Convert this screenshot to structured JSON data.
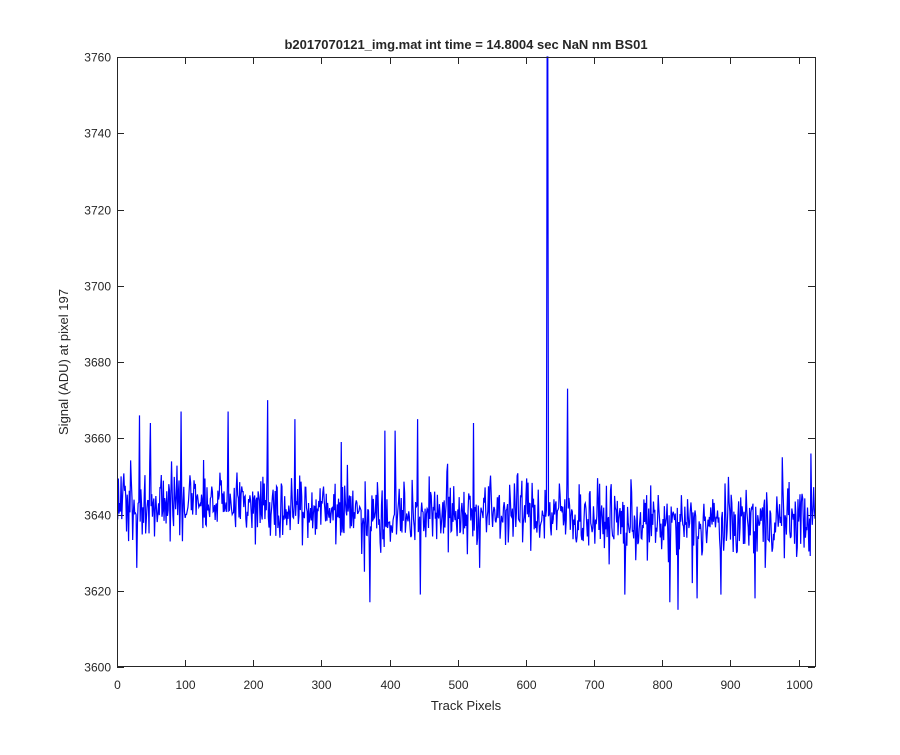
{
  "chart_data": {
    "type": "line",
    "title": "b2017070121_img.mat int time = 14.8004 sec  NaN nm BS01",
    "xlabel": "Track Pixels",
    "ylabel": "Signal (ADU) at pixel 197",
    "xlim": [
      0,
      1024
    ],
    "ylim": [
      3600,
      3760
    ],
    "xticks": [
      0,
      100,
      200,
      300,
      400,
      500,
      600,
      700,
      800,
      900,
      1000
    ],
    "yticks": [
      3600,
      3620,
      3640,
      3660,
      3680,
      3700,
      3720,
      3740,
      3760
    ],
    "xticklabels": [
      "0",
      "100",
      "200",
      "300",
      "400",
      "500",
      "600",
      "700",
      "800",
      "900",
      "1000"
    ],
    "yticklabels": [
      "3600",
      "3620",
      "3640",
      "3660",
      "3680",
      "3700",
      "3720",
      "3740",
      "3760"
    ],
    "grid": false,
    "line_color": "#0000ff",
    "n_points": 1024,
    "baseline": [
      {
        "x": 0,
        "y": 3643
      },
      {
        "x": 200,
        "y": 3643
      },
      {
        "x": 400,
        "y": 3640
      },
      {
        "x": 600,
        "y": 3641
      },
      {
        "x": 800,
        "y": 3637
      },
      {
        "x": 1024,
        "y": 3639
      }
    ],
    "noise_amplitude": 5.5,
    "spikes": [
      {
        "x": 5,
        "y": 3650
      },
      {
        "x": 28,
        "y": 3626
      },
      {
        "x": 32,
        "y": 3666
      },
      {
        "x": 48,
        "y": 3664
      },
      {
        "x": 93,
        "y": 3667
      },
      {
        "x": 95,
        "y": 3633
      },
      {
        "x": 162,
        "y": 3667
      },
      {
        "x": 220,
        "y": 3670
      },
      {
        "x": 260,
        "y": 3665
      },
      {
        "x": 328,
        "y": 3659
      },
      {
        "x": 362,
        "y": 3625
      },
      {
        "x": 370,
        "y": 3617
      },
      {
        "x": 392,
        "y": 3662
      },
      {
        "x": 407,
        "y": 3662
      },
      {
        "x": 440,
        "y": 3665
      },
      {
        "x": 444,
        "y": 3619
      },
      {
        "x": 522,
        "y": 3664
      },
      {
        "x": 531,
        "y": 3626
      },
      {
        "x": 630,
        "y": 3760
      },
      {
        "x": 631,
        "y": 3760
      },
      {
        "x": 660,
        "y": 3673
      },
      {
        "x": 744,
        "y": 3619
      },
      {
        "x": 810,
        "y": 3617
      },
      {
        "x": 822,
        "y": 3615
      },
      {
        "x": 843,
        "y": 3622
      },
      {
        "x": 850,
        "y": 3618
      },
      {
        "x": 885,
        "y": 3619
      },
      {
        "x": 935,
        "y": 3618
      },
      {
        "x": 950,
        "y": 3626
      },
      {
        "x": 975,
        "y": 3655
      },
      {
        "x": 1017,
        "y": 3656
      }
    ]
  }
}
